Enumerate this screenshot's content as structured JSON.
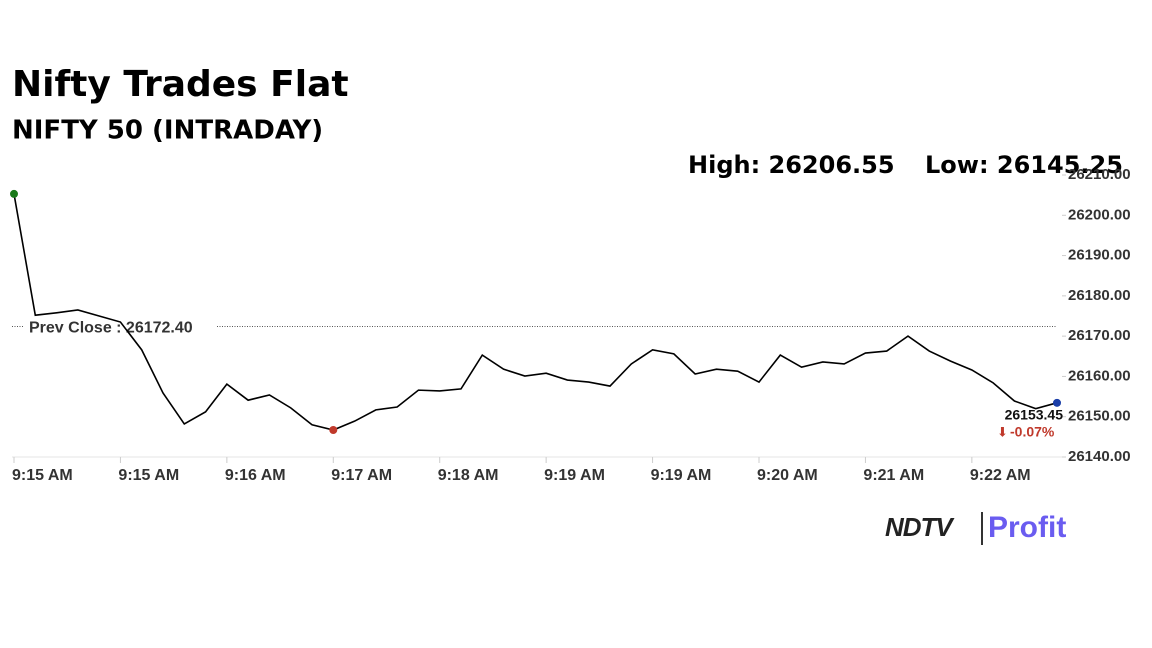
{
  "chart_data": {
    "type": "line",
    "title": "Nifty Trades Flat",
    "subtitle": "NIFTY 50 (INTRADAY)",
    "high_label": "High: 26206.55",
    "low_label": "Low: 26145.25",
    "reference_line": {
      "value": 26172.4,
      "label": "Prev Close : 26172.40"
    },
    "categories": [
      "9:15 AM",
      null,
      null,
      null,
      null,
      "9:15 AM",
      null,
      null,
      null,
      null,
      "9:16 AM",
      null,
      null,
      null,
      null,
      "9:17 AM",
      null,
      null,
      null,
      null,
      "9:18 AM",
      null,
      null,
      null,
      null,
      "9:19 AM",
      null,
      null,
      null,
      null,
      "9:19 AM",
      null,
      null,
      null,
      null,
      "9:20 AM",
      null,
      null,
      null,
      null,
      "9:21 AM",
      null,
      null,
      null,
      null,
      "9:22 AM",
      null,
      null,
      null,
      null
    ],
    "series": [
      {
        "color": "#000000",
        "values": [
          26205.3,
          26175.2,
          26175.8,
          26176.5,
          26175.0,
          26173.5,
          26166.6,
          26155.9,
          26148.2,
          26151.2,
          26158.1,
          26154.1,
          26155.4,
          26152.2,
          26148.0,
          26146.7,
          26148.9,
          26151.7,
          26152.4,
          26156.6,
          26156.4,
          26156.9,
          26165.3,
          26161.8,
          26160.1,
          26160.8,
          26159.1,
          26158.6,
          26157.6,
          26163.1,
          26166.6,
          26165.6,
          26160.6,
          26161.8,
          26161.3,
          26158.6,
          26165.3,
          26162.3,
          26163.6,
          26163.1,
          26165.8,
          26166.3,
          26170.0,
          26166.3,
          26163.8,
          26161.6,
          26158.4,
          26153.9,
          26152.0,
          26153.45
        ],
        "last_value_label": "26153.45",
        "change_label": "-0.07%"
      }
    ],
    "ylim": [
      26140,
      26210
    ],
    "yticks": [
      {
        "value": 26140,
        "label": "26140.00"
      },
      {
        "value": 26150,
        "label": "26150.00"
      },
      {
        "value": 26160,
        "label": "26160.00"
      },
      {
        "value": 26170,
        "label": "26170.00"
      },
      {
        "value": 26180,
        "label": "26180.00"
      },
      {
        "value": 26190,
        "label": "26190.00"
      },
      {
        "value": 26200,
        "label": "26200.00"
      },
      {
        "value": 26210,
        "label": "26210.00"
      }
    ],
    "logo": {
      "brand": "NDTV",
      "product": "Profit"
    }
  }
}
